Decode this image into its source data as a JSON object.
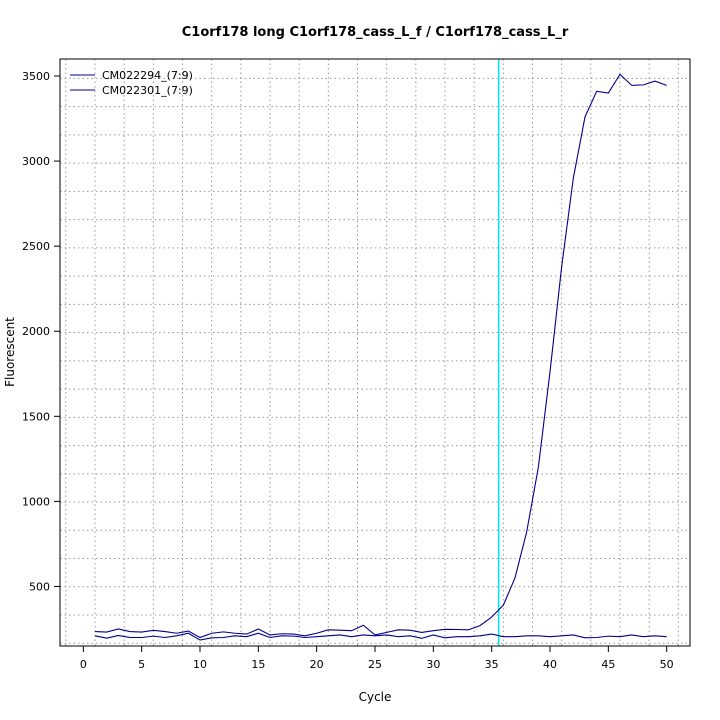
{
  "chart_data": {
    "type": "line",
    "title": "C1orf178 long C1orf178_cass_L_f / C1orf178_cass_L_r",
    "xlabel": "Cycle",
    "ylabel": "Fluorescent",
    "xlim": [
      -2,
      52
    ],
    "ylim": [
      150,
      3600
    ],
    "x_ticks": [
      0,
      5,
      10,
      15,
      20,
      25,
      30,
      35,
      40,
      45,
      50
    ],
    "x_tick_labels": [
      "0",
      "5",
      "10",
      "15",
      "20",
      "25",
      "30",
      "35",
      "40",
      "45",
      "50"
    ],
    "y_ticks": [
      500,
      1000,
      1500,
      2000,
      2500,
      3000,
      3500
    ],
    "y_tick_labels": [
      "500",
      "1000",
      "1500",
      "2000",
      "2500",
      "3000",
      "3500"
    ],
    "grid": true,
    "grid_style": "dotted",
    "threshold_cycle": 35.6,
    "threshold_color": "#00e5ee",
    "legend_position": "top-left",
    "x": [
      1,
      2,
      3,
      4,
      5,
      6,
      7,
      8,
      9,
      10,
      11,
      12,
      13,
      14,
      15,
      16,
      17,
      18,
      19,
      20,
      21,
      22,
      23,
      24,
      25,
      26,
      27,
      28,
      29,
      30,
      31,
      32,
      33,
      34,
      35,
      36,
      37,
      38,
      39,
      40,
      41,
      42,
      43,
      44,
      45,
      46,
      47,
      48,
      49,
      50
    ],
    "series": [
      {
        "name": "CM022294_(7:9)",
        "color": "#00008b",
        "values": [
          235,
          232,
          250,
          235,
          232,
          242,
          235,
          225,
          238,
          200,
          225,
          233,
          225,
          220,
          250,
          215,
          222,
          220,
          210,
          225,
          245,
          243,
          240,
          272,
          215,
          230,
          245,
          243,
          230,
          240,
          248,
          247,
          245,
          270,
          320,
          390,
          550,
          820,
          1200,
          1760,
          2380,
          2900,
          3260,
          3410,
          3400,
          3510,
          3445,
          3448,
          3470,
          3445
        ]
      },
      {
        "name": "CM022301_(7:9)",
        "color": "#00008b",
        "values": [
          210,
          196,
          212,
          200,
          200,
          208,
          200,
          210,
          225,
          185,
          198,
          200,
          210,
          205,
          225,
          200,
          210,
          208,
          200,
          205,
          210,
          215,
          205,
          215,
          210,
          215,
          205,
          210,
          195,
          215,
          198,
          205,
          205,
          210,
          220,
          205,
          205,
          210,
          210,
          205,
          210,
          215,
          198,
          200,
          208,
          205,
          215,
          205,
          210,
          205
        ]
      }
    ]
  }
}
